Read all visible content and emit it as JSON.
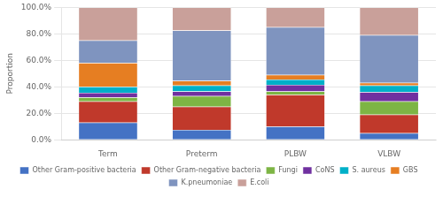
{
  "chart_data": {
    "type": "bar",
    "stacked": true,
    "categories": [
      "Term",
      "Preterm",
      "PLBW",
      "VLBW"
    ],
    "series": [
      {
        "name": "Other Gram-positive bacteria",
        "color": "#4472C4",
        "values": [
          13.0,
          7.5,
          10.0,
          5.0
        ]
      },
      {
        "name": "Other Gram-negative bacteria",
        "color": "#C0392B",
        "values": [
          16.0,
          17.5,
          24.0,
          14.0
        ]
      },
      {
        "name": "Fungi",
        "color": "#7DB544",
        "values": [
          3.0,
          8.0,
          2.5,
          10.0
        ]
      },
      {
        "name": "CoNS",
        "color": "#7030A0",
        "values": [
          3.5,
          3.5,
          5.0,
          7.0
        ]
      },
      {
        "name": "S. aureus",
        "color": "#00B0C8",
        "values": [
          4.5,
          4.5,
          4.0,
          5.0
        ]
      },
      {
        "name": "GBS",
        "color": "#E67E22",
        "values": [
          18.0,
          3.5,
          3.5,
          2.0
        ]
      },
      {
        "name": "K.pneumoniae",
        "color": "#7F94BF",
        "values": [
          17.0,
          38.0,
          36.0,
          36.0
        ]
      },
      {
        "name": "E.coli",
        "color": "#C9A09A",
        "values": [
          25.0,
          17.5,
          15.0,
          21.0
        ]
      }
    ],
    "ylabel": "Proportion",
    "ylim": [
      0,
      100
    ],
    "yticks": [
      {
        "value": 0,
        "label": "0.0%"
      },
      {
        "value": 20,
        "label": "20.0%"
      },
      {
        "value": 40,
        "label": "40.0%"
      },
      {
        "value": 60,
        "label": "60.0%"
      },
      {
        "value": 80,
        "label": "80.0%"
      },
      {
        "value": 100,
        "label": "100.0%"
      }
    ],
    "grid": true,
    "legend": "bottom"
  }
}
